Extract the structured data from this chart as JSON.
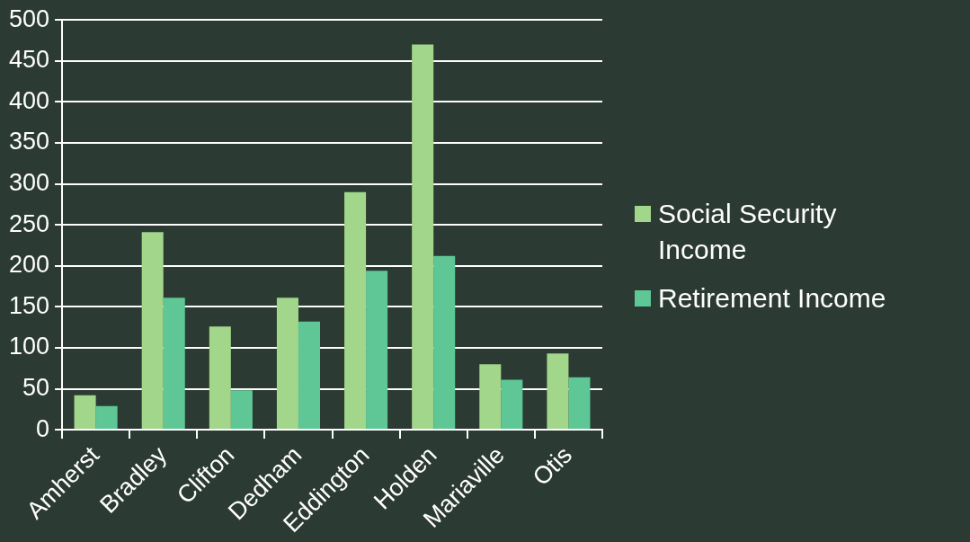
{
  "chart_data": {
    "type": "bar",
    "categories": [
      "Amherst",
      "Bradley",
      "Clifton",
      "Dedham",
      "Eddington",
      "Holden",
      "Mariaville",
      "Otis"
    ],
    "series": [
      {
        "name": "Social Security Income",
        "color": "#a2d68a",
        "values": [
          42,
          241,
          126,
          161,
          290,
          470,
          80,
          93
        ]
      },
      {
        "name": "Retirement Income",
        "color": "#5ec795",
        "values": [
          29,
          161,
          48,
          132,
          194,
          212,
          61,
          64
        ]
      }
    ],
    "ylim": [
      0,
      500
    ],
    "yticks": [
      0,
      50,
      100,
      150,
      200,
      250,
      300,
      350,
      400,
      450,
      500
    ],
    "grid": "y",
    "legend": "right"
  }
}
